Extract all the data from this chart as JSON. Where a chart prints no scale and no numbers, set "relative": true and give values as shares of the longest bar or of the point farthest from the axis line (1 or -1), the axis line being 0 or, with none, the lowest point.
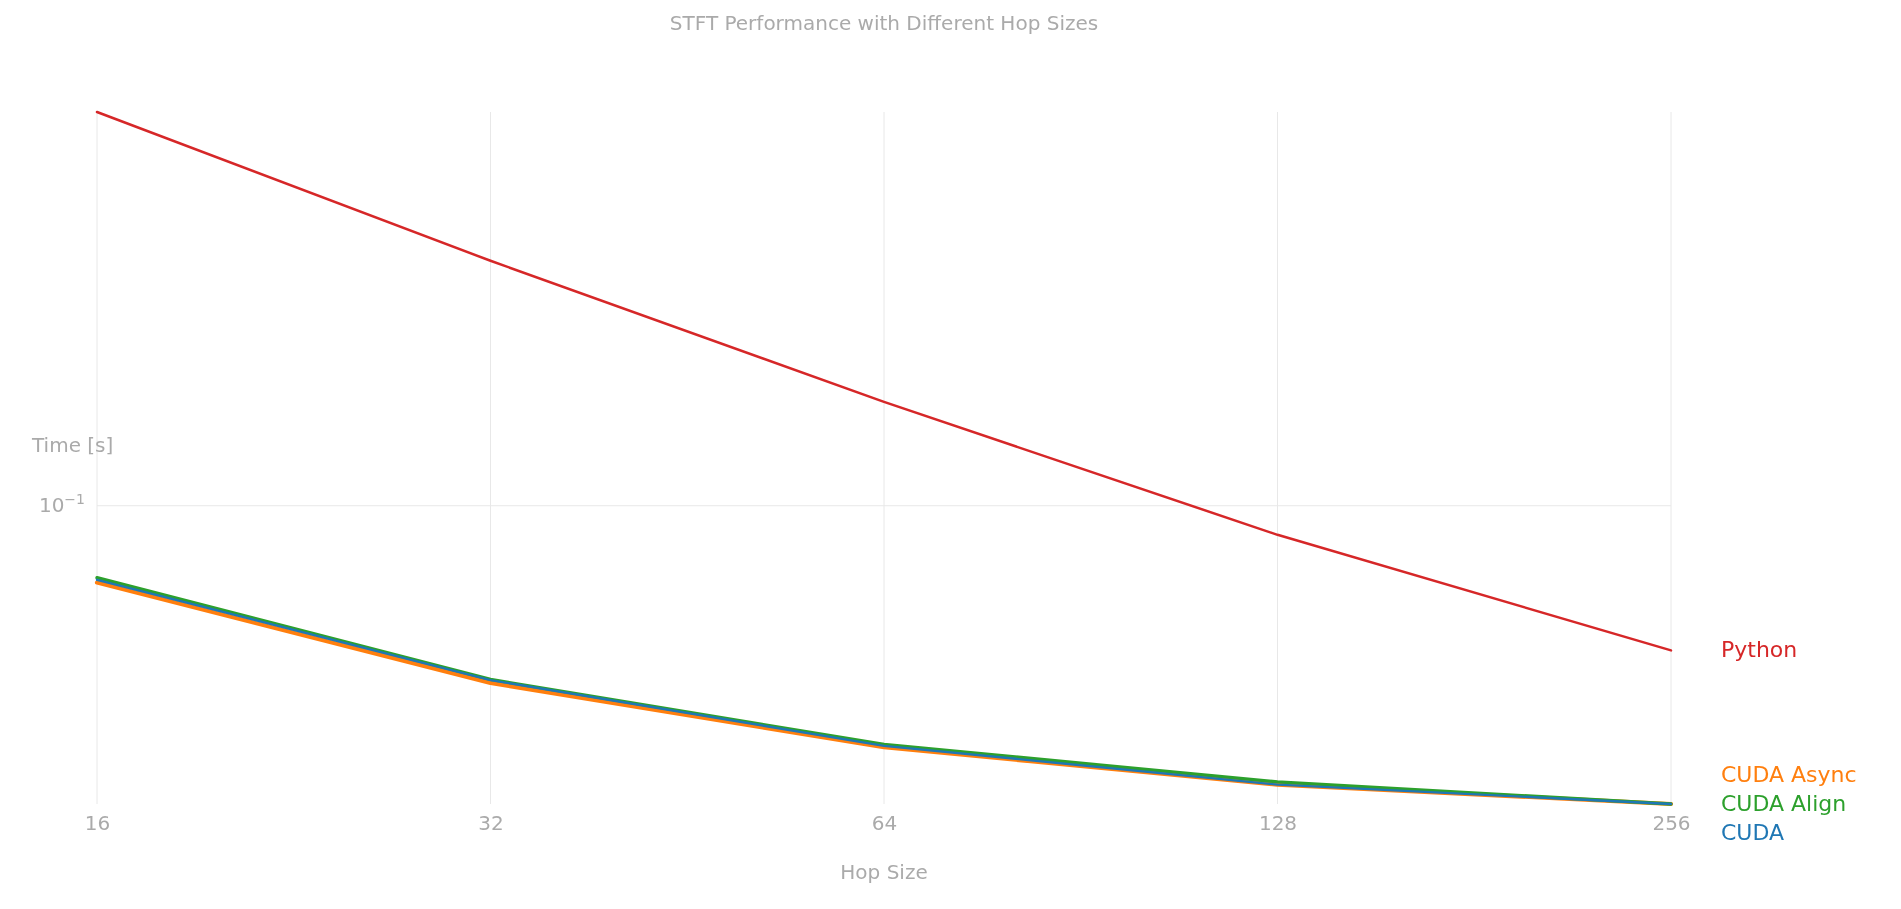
{
  "chart_data": {
    "type": "line",
    "title": "STFT Performance with Different Hop Sizes",
    "xlabel": "Hop Size",
    "ylabel": "Time [s]",
    "relative": true,
    "log": "x",
    "grid": "x",
    "legend": false,
    "x": [
      16,
      32,
      64,
      128,
      256
    ],
    "xlim": [
      16,
      256
    ],
    "xticks": [
      16,
      32,
      64,
      128,
      256
    ],
    "ref_lines": [
      {
        "axis": "y",
        "value": 0.431,
        "label": "10$^{−1}$",
        "color": "#e8e8e8"
      }
    ],
    "series": [
      {
        "name": "Python",
        "color": "#d62728",
        "values": [
          1,
          0.785,
          0.581,
          0.389,
          0.222
        ]
      },
      {
        "name": "CUDA Async",
        "color": "#ff7f0e",
        "values": [
          0.32,
          0.175,
          0.082,
          0.028,
          0
        ]
      },
      {
        "name": "CUDA Align",
        "color": "#2ca02c",
        "values": [
          0.327,
          0.18,
          0.086,
          0.032,
          0
        ]
      },
      {
        "name": "CUDA",
        "color": "#1f77b4",
        "values": [
          0.324,
          0.179,
          0.084,
          0.028,
          0
        ]
      }
    ]
  }
}
